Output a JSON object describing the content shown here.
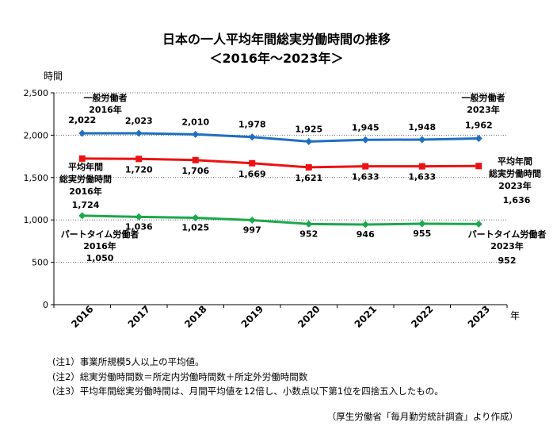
{
  "title": "日本の一人平均年間総実労働時間の推移",
  "subtitle": "＜2016年～2023年＞",
  "chart_data": {
    "type": "line",
    "ylabel": "時間",
    "xlabel": "年",
    "categories": [
      "2016",
      "2017",
      "2018",
      "2019",
      "2020",
      "2021",
      "2022",
      "2023"
    ],
    "ylim": [
      0,
      2500
    ],
    "yticks": [
      "0",
      "500",
      "1,000",
      "1,500",
      "2,000",
      "2,500"
    ],
    "grid": "horizontal dotted",
    "series": [
      {
        "key": "general",
        "color": "#1f6fbf",
        "values": [
          2022,
          2023,
          2010,
          1978,
          1925,
          1945,
          1948,
          1962
        ],
        "labels": [
          "2,022",
          "2,023",
          "2,010",
          "1,978",
          "1,925",
          "1,945",
          "1,948",
          "1,962"
        ],
        "annotation_start": [
          "一般労働者",
          "2016年"
        ],
        "annotation_end": [
          "一般労働者",
          "2023年"
        ]
      },
      {
        "key": "average",
        "color": "#ee1111",
        "values": [
          1724,
          1720,
          1706,
          1669,
          1621,
          1633,
          1633,
          1636
        ],
        "labels": [
          "1,724",
          "1,720",
          "1,706",
          "1,669",
          "1,621",
          "1,633",
          "1,633",
          "1,636"
        ],
        "annotation_start": [
          "平均年間",
          "総実労働時間",
          "2016年"
        ],
        "annotation_end": [
          "平均年間",
          "総実労働時間",
          "2023年"
        ]
      },
      {
        "key": "parttime",
        "color": "#1aa84b",
        "values": [
          1050,
          1036,
          1025,
          997,
          952,
          946,
          955,
          952
        ],
        "labels": [
          "1,050",
          "1,036",
          "1,025",
          "997",
          "952",
          "946",
          "955",
          "952"
        ],
        "annotation_start": [
          "パートタイム労働者",
          "2016年"
        ],
        "annotation_end": [
          "パートタイム労働者",
          "2023年"
        ]
      }
    ]
  },
  "notes": [
    "(注1）事業所規模5人以上の平均値。",
    "(注2）総実労働時間数＝所定内労働時間数＋所定外労働時間数",
    "(注3）平均年間総実労働時間は、月間平均値を12倍し、小数点以下第1位を四捨五入したもの。"
  ],
  "source": "（厚生労働省「毎月勤労統計調査」より作成）"
}
